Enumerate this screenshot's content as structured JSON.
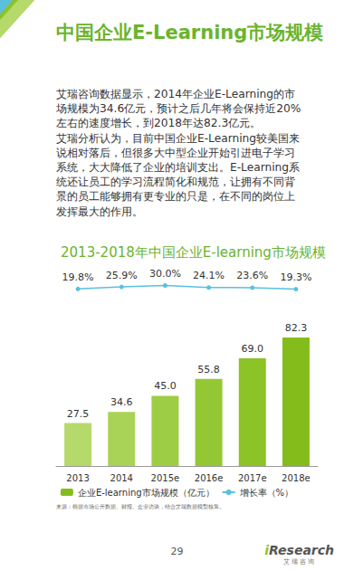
{
  "chart_data": {
    "type": "bar",
    "title": "2013-2018年中国企业E-learning市场规模",
    "annotations": {
      "heading": "中国企业E-Learning市场规模",
      "paragraph": [
        "艾瑞咨询数据显示，2014年企业E-Learning的市",
        "场规模为34.6亿元，预计之后几年将会保持近20%",
        "左右的速度增长，到2018年达82.3亿元。",
        "艾瑞分析认为，目前中国企业E-Learning较美国来",
        "说相对落后，但很多大中型企业开始引进电子学习",
        "系统，大大降低了企业的培训支出。E-Learning系",
        "统还让员工的学习流程简化和规范，让拥有不同背",
        "景的员工能够拥有更专业的只是，在不同的岗位上",
        "发挥最大的作用。"
      ],
      "source": "来源：根据市场公开数据、财报、企业访谈，结合艾瑞数据模型核算。",
      "page": "29",
      "logo": "iResearch",
      "logo_cn": "艾瑞咨询"
    },
    "categories": [
      "2013",
      "2014",
      "2015e",
      "2016e",
      "2017e",
      "2018e"
    ],
    "series": [
      {
        "name": "企业E-learning市场规模（亿元）",
        "type": "bar",
        "values": [
          27.5,
          34.6,
          45.0,
          55.8,
          69.0,
          82.3
        ],
        "value_labels": [
          "27.5",
          "34.6",
          "45.0",
          "55.8",
          "69.0",
          "82.3"
        ],
        "colors": [
          "#b5d96a",
          "#a9d357",
          "#9dcd44",
          "#93c834",
          "#8cc327",
          "#84bd1b"
        ]
      },
      {
        "name": "增长率（%）",
        "type": "line",
        "axis": "y2",
        "color": "#5bc0de",
        "marker": "circle",
        "values": [
          19.8,
          25.9,
          30.0,
          24.1,
          23.6,
          19.3
        ],
        "value_labels": [
          "19.8%",
          "25.9%",
          "30.0%",
          "24.1%",
          "23.6%",
          "19.3%"
        ]
      }
    ],
    "ylim": [
      0,
      120
    ],
    "yticks": [
      0,
      120
    ],
    "y2lim": [
      -500,
      50
    ],
    "y2ticks": [
      -500,
      50
    ],
    "grid": false,
    "legend": "bottom",
    "data_labels": true,
    "tick_labels": "x"
  }
}
